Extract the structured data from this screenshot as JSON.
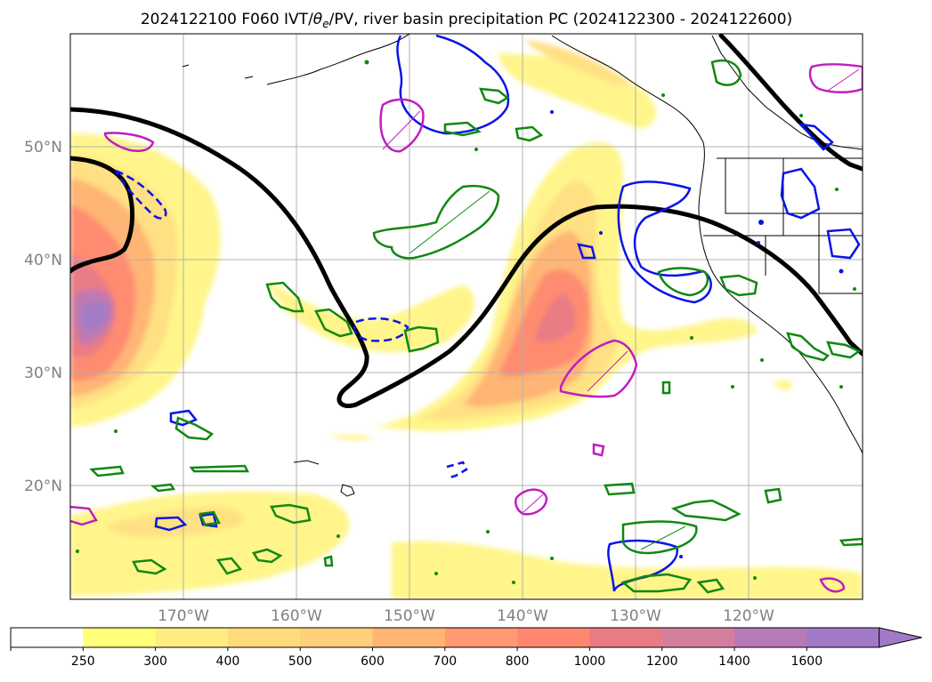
{
  "title": "2024122100 F060 IVT/θe/PV, river basin precipitation PC (2024122300 - 2024122600)",
  "title_parts": {
    "prefix": "2024122100 F060 IVT/",
    "theta": "θ",
    "sub": "e",
    "suffix": "/PV, river basin precipitation PC (2024122300 - 2024122600)"
  },
  "map": {
    "projection": "plate-carree",
    "lon_range_deg_east": [
      180,
      250
    ],
    "lat_range_deg": [
      10,
      60
    ],
    "grid": true,
    "lat_labels": [
      "50°N",
      "40°N",
      "30°N",
      "20°N"
    ],
    "lon_labels": [
      "170°W",
      "160°W",
      "150°W",
      "140°W",
      "130°W",
      "120°W"
    ],
    "fields": {
      "fill": "IVT",
      "black_contour": "θe",
      "blue_contours": "PV",
      "magenta_green_contours": "river basin precipitation PC"
    }
  },
  "colorbar": {
    "levels": [
      "250",
      "300",
      "400",
      "500",
      "600",
      "700",
      "800",
      "1000",
      "1200",
      "1400",
      "1600"
    ],
    "colors": [
      "#ffffff",
      "#ffff7a",
      "#ffed80",
      "#ffdb7d",
      "#ffcf7a",
      "#ffb574",
      "#ff9a72",
      "#ff8770",
      "#e97b85",
      "#d47e9e",
      "#b77ab8",
      "#a279c6"
    ],
    "extend": "max"
  },
  "colors": {
    "ivt_low": "#fff58a",
    "ivt_mid": "#ffb070",
    "ivt_high": "#ff7a72",
    "ivt_peak": "#a47bc6",
    "theta_e": "#000000",
    "pv": "#0a14e6",
    "pc_positive": "#c01ec0",
    "pc_negative": "#118811",
    "coast": "#000000",
    "grid": "#b0b0b0"
  }
}
